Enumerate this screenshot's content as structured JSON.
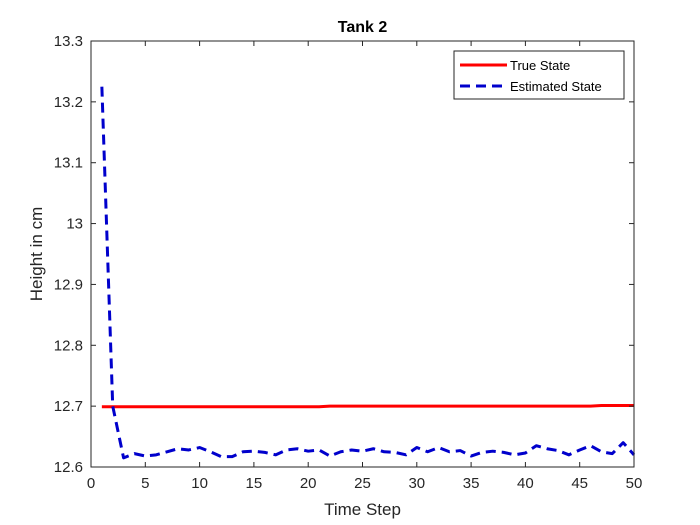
{
  "chart_data": {
    "type": "line",
    "title": "Tank 2",
    "xlabel": "Time Step",
    "ylabel": "Height in cm",
    "xlim": [
      0,
      50
    ],
    "ylim": [
      12.6,
      13.3
    ],
    "xticks": [
      0,
      5,
      10,
      15,
      20,
      25,
      30,
      35,
      40,
      45,
      50
    ],
    "yticks": [
      12.6,
      12.7,
      12.8,
      12.9,
      13,
      13.1,
      13.2,
      13.3
    ],
    "xtick_labels": [
      "0",
      "5",
      "10",
      "15",
      "20",
      "25",
      "30",
      "35",
      "40",
      "45",
      "50"
    ],
    "ytick_labels": [
      "12.6",
      "12.7",
      "12.8",
      "12.9",
      "13",
      "13.1",
      "13.2",
      "13.3"
    ],
    "grid": false,
    "legend_position": "top-right",
    "x": [
      1,
      2,
      3,
      4,
      5,
      6,
      7,
      8,
      9,
      10,
      11,
      12,
      13,
      14,
      15,
      16,
      17,
      18,
      19,
      20,
      21,
      22,
      23,
      24,
      25,
      26,
      27,
      28,
      29,
      30,
      31,
      32,
      33,
      34,
      35,
      36,
      37,
      38,
      39,
      40,
      41,
      42,
      43,
      44,
      45,
      46,
      47,
      48,
      49,
      50
    ],
    "series": [
      {
        "name": "True State",
        "color": "#ff0000",
        "style": "solid",
        "values": [
          12.699,
          12.699,
          12.699,
          12.699,
          12.699,
          12.699,
          12.699,
          12.699,
          12.699,
          12.699,
          12.699,
          12.699,
          12.699,
          12.699,
          12.699,
          12.699,
          12.699,
          12.699,
          12.699,
          12.699,
          12.699,
          12.7,
          12.7,
          12.7,
          12.7,
          12.7,
          12.7,
          12.7,
          12.7,
          12.7,
          12.7,
          12.7,
          12.7,
          12.7,
          12.7,
          12.7,
          12.7,
          12.7,
          12.7,
          12.7,
          12.7,
          12.7,
          12.7,
          12.7,
          12.7,
          12.7,
          12.701,
          12.701,
          12.701,
          12.701
        ]
      },
      {
        "name": "Estimated State",
        "color": "#0000cc",
        "style": "dashed",
        "values": [
          13.225,
          12.7,
          12.615,
          12.622,
          12.618,
          12.62,
          12.625,
          12.63,
          12.628,
          12.632,
          12.625,
          12.617,
          12.617,
          12.625,
          12.626,
          12.624,
          12.62,
          12.628,
          12.63,
          12.626,
          12.628,
          12.618,
          12.625,
          12.628,
          12.626,
          12.63,
          12.625,
          12.624,
          12.62,
          12.632,
          12.625,
          12.632,
          12.625,
          12.627,
          12.618,
          12.624,
          12.626,
          12.624,
          12.62,
          12.623,
          12.635,
          12.63,
          12.627,
          12.62,
          12.628,
          12.635,
          12.625,
          12.622,
          12.64,
          12.62
        ]
      }
    ]
  }
}
